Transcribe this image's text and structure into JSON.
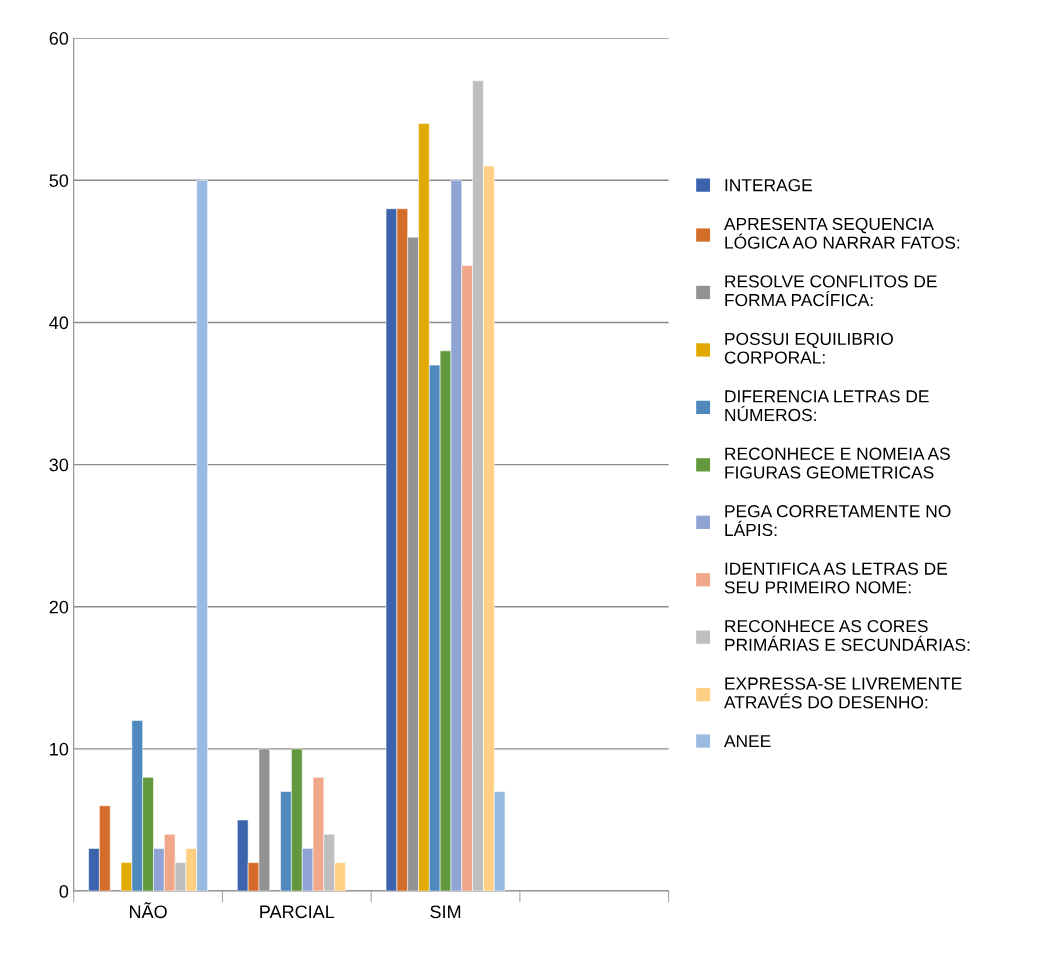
{
  "chart_data": {
    "type": "bar",
    "categories": [
      "NÃO",
      "PARCIAL",
      "SIM",
      null
    ],
    "series": [
      {
        "name": "INTERAGE",
        "color": "#3c64ad",
        "values": [
          3,
          5,
          48,
          null
        ]
      },
      {
        "name": "APRESENTA SEQUENCIA\nLÓGICA AO NARRAR FATOS:",
        "color": "#d46d2a",
        "values": [
          6,
          2,
          48,
          null
        ]
      },
      {
        "name": "RESOLVE CONFLITOS DE\nFORMA PACÍFICA:",
        "color": "#929292",
        "values": [
          null,
          10,
          46,
          null
        ]
      },
      {
        "name": "POSSUI EQUILIBRIO\nCORPORAL:",
        "color": "#e2aa00",
        "values": [
          2,
          null,
          54,
          null
        ]
      },
      {
        "name": "DIFERENCIA LETRAS DE\nNÚMEROS:",
        "color": "#4f89bd",
        "values": [
          12,
          7,
          37,
          null
        ]
      },
      {
        "name": "RECONHECE E NOMEIA AS\nFIGURAS GEOMETRICAS",
        "color": "#62983e",
        "values": [
          8,
          10,
          38,
          null
        ]
      },
      {
        "name": "PEGA CORRETAMENTE NO\nLÁPIS:",
        "color": "#8fa3d4",
        "values": [
          3,
          3,
          50,
          null
        ]
      },
      {
        "name": "IDENTIFICA AS LETRAS DE\nSEU PRIMEIRO NOME:",
        "color": "#f1a88a",
        "values": [
          4,
          8,
          44,
          null
        ]
      },
      {
        "name": "RECONHECE AS CORES\nPRIMÁRIAS E SECUNDÁRIAS:",
        "color": "#bebebe",
        "values": [
          2,
          4,
          57,
          null
        ]
      },
      {
        "name": "EXPRESSA-SE LIVREMENTE\nATRAVÉS DO DESENHO:",
        "color": "#ffd083",
        "values": [
          3,
          2,
          51,
          null
        ]
      },
      {
        "name": "ANEE",
        "color": "#99bae0",
        "values": [
          50,
          null,
          7,
          null
        ]
      }
    ],
    "ylim": [
      0,
      60
    ],
    "yticks": [
      0,
      10,
      20,
      30,
      40,
      50,
      60
    ],
    "grid": "y",
    "legend": "right"
  }
}
